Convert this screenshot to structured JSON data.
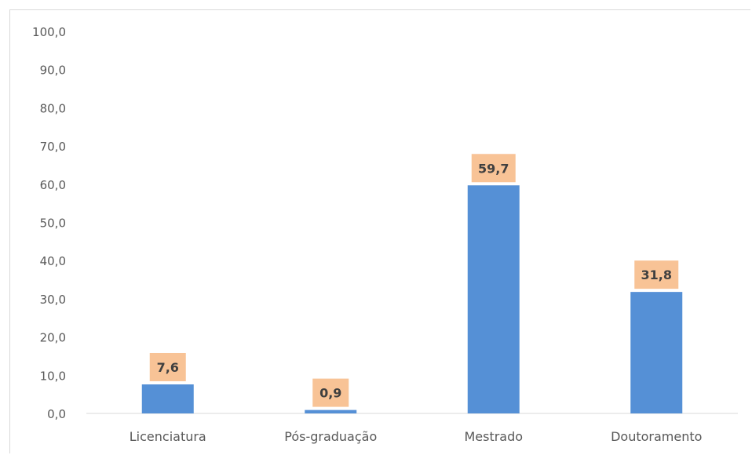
{
  "chart_data": {
    "type": "bar",
    "categories": [
      "Licenciatura",
      "Pós-graduação",
      "Mestrado",
      "Doutoramento"
    ],
    "values": [
      7.6,
      0.9,
      59.7,
      31.8
    ],
    "data_labels": [
      "7,6",
      "0,9",
      "59,7",
      "31,8"
    ],
    "y_ticks": [
      "0,0",
      "10,0",
      "20,0",
      "30,0",
      "40,0",
      "50,0",
      "60,0",
      "70,0",
      "80,0",
      "90,0",
      "100,0"
    ],
    "ylim": [
      0,
      100
    ],
    "grid": false,
    "bar_color": "#5590d6",
    "label_bg_color": "#f8c396",
    "axis_color": "#d9d9d9"
  }
}
